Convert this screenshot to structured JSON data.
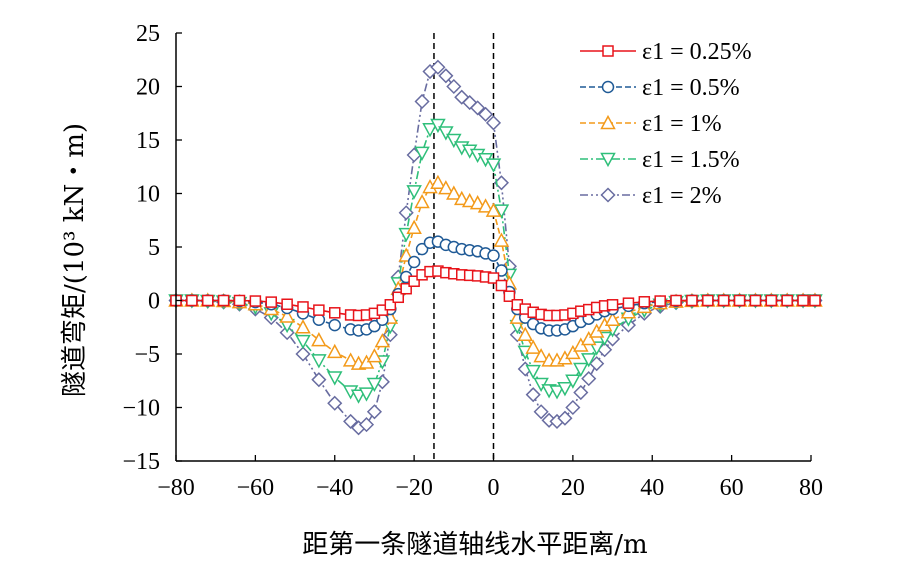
{
  "chart_data": {
    "type": "line",
    "xlabel": "距第一条隧道轴线水平距离/m",
    "ylabel": "隧道弯矩/(10³ kN・m)",
    "xlim": [
      -80,
      80
    ],
    "ylim": [
      -15,
      25
    ],
    "x_ticks": [
      "−80",
      "−60",
      "−40",
      "−20",
      "0",
      "20",
      "40",
      "60",
      "80"
    ],
    "y_ticks": [
      "25",
      "20",
      "15",
      "10",
      "5",
      "0",
      "−5",
      "−10",
      "−15"
    ],
    "vertical_reference_lines_x": [
      -15,
      0
    ],
    "legend_position": "top-right",
    "x": [
      -80,
      -76,
      -72,
      -68,
      -64,
      -60,
      -56,
      -52,
      -48,
      -44,
      -40,
      -36,
      -34,
      -32,
      -30,
      -28,
      -26,
      -24,
      -22,
      -20,
      -18,
      -16,
      -14,
      -12,
      -10,
      -8,
      -6,
      -4,
      -2,
      0,
      2,
      4,
      6,
      8,
      10,
      12,
      14,
      16,
      18,
      20,
      22,
      24,
      26,
      28,
      30,
      34,
      38,
      42,
      46,
      50,
      54,
      58,
      62,
      66,
      70,
      74,
      78,
      81
    ],
    "series": [
      {
        "name": "ε1 = 0.25%",
        "color": "#e8141a",
        "marker": "square",
        "dash": "solid",
        "values": [
          0,
          0,
          0,
          0,
          0,
          -0.05,
          -0.15,
          -0.35,
          -0.6,
          -0.9,
          -1.15,
          -1.35,
          -1.4,
          -1.35,
          -1.2,
          -0.9,
          -0.4,
          0.3,
          1.1,
          1.8,
          2.4,
          2.7,
          2.75,
          2.6,
          2.5,
          2.4,
          2.35,
          2.3,
          2.2,
          2.1,
          1.4,
          0.4,
          -0.4,
          -0.8,
          -1.1,
          -1.3,
          -1.4,
          -1.4,
          -1.35,
          -1.2,
          -1.0,
          -0.85,
          -0.65,
          -0.5,
          -0.4,
          -0.25,
          -0.12,
          -0.05,
          0,
          0,
          0,
          0,
          0,
          0,
          0,
          0,
          0,
          0
        ]
      },
      {
        "name": "ε1 = 0.5%",
        "color": "#1f5a96",
        "marker": "circle",
        "dash": "dashed",
        "values": [
          0,
          0,
          0,
          0,
          -0.05,
          -0.15,
          -0.35,
          -0.7,
          -1.2,
          -1.8,
          -2.3,
          -2.7,
          -2.8,
          -2.7,
          -2.4,
          -1.8,
          -0.8,
          0.6,
          2.2,
          3.6,
          4.8,
          5.4,
          5.5,
          5.2,
          5.0,
          4.8,
          4.7,
          4.6,
          4.4,
          4.2,
          2.8,
          0.8,
          -0.8,
          -1.6,
          -2.2,
          -2.6,
          -2.8,
          -2.8,
          -2.7,
          -2.4,
          -2.0,
          -1.7,
          -1.3,
          -1.0,
          -0.8,
          -0.5,
          -0.25,
          -0.1,
          -0.03,
          0,
          0,
          0,
          0,
          0,
          0,
          0,
          0,
          0
        ]
      },
      {
        "name": "ε1 = 1%",
        "color": "#f39a1a",
        "marker": "triangle-up",
        "dash": "dashed",
        "values": [
          0,
          0,
          0,
          -0.05,
          -0.15,
          -0.35,
          -0.8,
          -1.5,
          -2.5,
          -3.7,
          -4.8,
          -5.6,
          -5.9,
          -5.8,
          -5.2,
          -3.8,
          -1.6,
          1.1,
          4.2,
          6.8,
          9.2,
          10.6,
          11.0,
          10.5,
          10.0,
          9.5,
          9.3,
          9.1,
          8.8,
          8.4,
          5.6,
          1.6,
          -1.6,
          -3.2,
          -4.4,
          -5.2,
          -5.6,
          -5.6,
          -5.4,
          -4.9,
          -4.2,
          -3.6,
          -2.9,
          -2.3,
          -1.8,
          -1.1,
          -0.6,
          -0.25,
          -0.1,
          -0.03,
          0,
          0,
          0,
          0,
          0,
          0,
          0,
          0
        ]
      },
      {
        "name": "ε1 = 1.5%",
        "color": "#2fbf7a",
        "marker": "triangle-down",
        "dash": "dashdot",
        "values": [
          0,
          0,
          -0.05,
          -0.1,
          -0.25,
          -0.6,
          -1.2,
          -2.3,
          -3.8,
          -5.6,
          -7.2,
          -8.5,
          -8.9,
          -8.7,
          -7.8,
          -5.7,
          -2.4,
          1.6,
          6.2,
          10.2,
          13.8,
          16.0,
          16.4,
          15.7,
          15.0,
          14.3,
          14.0,
          13.6,
          13.2,
          12.7,
          8.4,
          2.4,
          -2.4,
          -4.8,
          -6.6,
          -7.8,
          -8.4,
          -8.5,
          -8.2,
          -7.5,
          -6.4,
          -5.5,
          -4.4,
          -3.5,
          -2.7,
          -1.7,
          -0.9,
          -0.4,
          -0.15,
          -0.05,
          0,
          0,
          0,
          0,
          0,
          0,
          0,
          0
        ]
      },
      {
        "name": "ε1 = 2%",
        "color": "#686ca0",
        "marker": "diamond",
        "dash": "dashdotdot",
        "values": [
          0,
          0,
          -0.05,
          -0.15,
          -0.35,
          -0.8,
          -1.6,
          -3.0,
          -5.0,
          -7.4,
          -9.6,
          -11.3,
          -11.9,
          -11.6,
          -10.4,
          -7.6,
          -3.2,
          2.2,
          8.2,
          13.6,
          18.6,
          21.4,
          21.8,
          21.0,
          20.0,
          19.0,
          18.5,
          18.0,
          17.4,
          16.6,
          11.0,
          3.2,
          -3.2,
          -6.4,
          -8.8,
          -10.4,
          -11.2,
          -11.3,
          -11.0,
          -10.0,
          -8.6,
          -7.3,
          -5.9,
          -4.6,
          -3.6,
          -2.3,
          -1.2,
          -0.55,
          -0.2,
          -0.07,
          0,
          0,
          0,
          0,
          0,
          0,
          0,
          0
        ]
      }
    ]
  }
}
